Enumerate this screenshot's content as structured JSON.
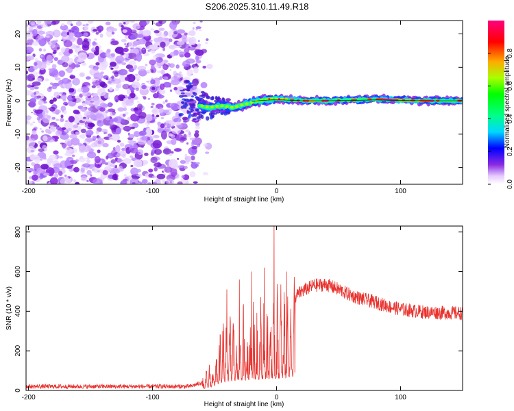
{
  "title": "S206.2025.310.11.49.R18",
  "chart_data": [
    {
      "type": "heatmap",
      "name": "spectrogram",
      "xlabel": "Height of straight line (km)",
      "ylabel": "Frequency (Hz)",
      "xlim": [
        -202,
        150
      ],
      "ylim": [
        -25,
        24
      ],
      "xticks": [
        -200,
        -100,
        0,
        100
      ],
      "xtick_labels": [
        "-200",
        "-100",
        "0",
        "100"
      ],
      "yticks": [
        -20,
        -10,
        0,
        10,
        20
      ],
      "ytick_labels": [
        "-20",
        "-10",
        "0",
        "10",
        "20"
      ],
      "noise_region": {
        "x_start": -202,
        "x_end": -60,
        "dominant_color": "#8a2be2"
      },
      "signal_track": [
        {
          "x": -75,
          "y": 1.5
        },
        {
          "x": -65,
          "y": -1
        },
        {
          "x": -55,
          "y": -2
        },
        {
          "x": -45,
          "y": -1.5
        },
        {
          "x": -35,
          "y": -2
        },
        {
          "x": -25,
          "y": -1
        },
        {
          "x": -15,
          "y": 0
        },
        {
          "x": -5,
          "y": 0.5
        },
        {
          "x": 5,
          "y": 0.5
        },
        {
          "x": 20,
          "y": 0
        },
        {
          "x": 40,
          "y": 0
        },
        {
          "x": 60,
          "y": 0.2
        },
        {
          "x": 80,
          "y": 0.5
        },
        {
          "x": 100,
          "y": 0.2
        },
        {
          "x": 120,
          "y": 0
        },
        {
          "x": 150,
          "y": 0
        }
      ],
      "colorbar": {
        "label": "Normalized spectral amplitude",
        "range": [
          0,
          1
        ],
        "ticks": [
          0.0,
          0.2,
          0.4,
          0.6,
          0.8
        ],
        "tick_labels": [
          "0.0",
          "0.2",
          "0.4",
          "0.6",
          "0.8"
        ]
      }
    },
    {
      "type": "line",
      "name": "snr",
      "xlabel": "Height of straight line (km)",
      "ylabel": "SNR (10 * v/v)",
      "xlim": [
        -202,
        150
      ],
      "ylim": [
        0,
        830
      ],
      "xticks": [
        -200,
        -100,
        0,
        100
      ],
      "xtick_labels": [
        "-200",
        "-100",
        "0",
        "100"
      ],
      "yticks": [
        0,
        200,
        400,
        600,
        800
      ],
      "ytick_labels": [
        "0",
        "200",
        "400",
        "600",
        "800"
      ],
      "color": "#e8322e",
      "envelope": [
        {
          "x": -202,
          "y": 20
        },
        {
          "x": -70,
          "y": 20
        },
        {
          "x": -60,
          "y": 40
        },
        {
          "x": -50,
          "y": 150
        },
        {
          "x": -45,
          "y": 250
        },
        {
          "x": -40,
          "y": 300
        },
        {
          "x": -30,
          "y": 330
        },
        {
          "x": -20,
          "y": 360
        },
        {
          "x": -10,
          "y": 380
        },
        {
          "x": 0,
          "y": 390
        },
        {
          "x": 10,
          "y": 440
        },
        {
          "x": 20,
          "y": 500
        },
        {
          "x": 30,
          "y": 530
        },
        {
          "x": 40,
          "y": 535
        },
        {
          "x": 50,
          "y": 510
        },
        {
          "x": 60,
          "y": 480
        },
        {
          "x": 70,
          "y": 460
        },
        {
          "x": 80,
          "y": 445
        },
        {
          "x": 90,
          "y": 425
        },
        {
          "x": 100,
          "y": 410
        },
        {
          "x": 120,
          "y": 395
        },
        {
          "x": 150,
          "y": 390
        }
      ],
      "peaks": [
        {
          "x": -40,
          "y": 510
        },
        {
          "x": -30,
          "y": 560
        },
        {
          "x": -20,
          "y": 600
        },
        {
          "x": -10,
          "y": 620
        },
        {
          "x": -2,
          "y": 830
        },
        {
          "x": 8,
          "y": 600
        }
      ]
    }
  ]
}
